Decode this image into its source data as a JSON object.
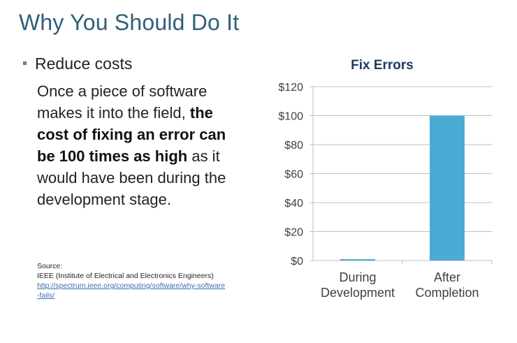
{
  "slide": {
    "title": "Why You Should Do It",
    "bullet": "Reduce costs",
    "body_pre": "Once a piece of software makes it into the field,",
    "body_bold": "the cost of fixing an error can be 100 times as high",
    "body_post": "as it would have been during the development stage.",
    "source_label": "Source:",
    "source_org": "IEEE (Institute of Electrical and Electronics Engineers)",
    "source_link": "http://spectrum.ieee.org/computing/software/why-software-fails/"
  },
  "chart_data": {
    "type": "bar",
    "title": "Fix Errors",
    "categories": [
      [
        "During",
        "Development"
      ],
      [
        "After",
        "Completion"
      ]
    ],
    "values": [
      1,
      100
    ],
    "ylim": [
      0,
      120
    ],
    "yticks": [
      0,
      20,
      40,
      60,
      80,
      100,
      120
    ],
    "tick_prefix": "$",
    "xlabel": "",
    "ylabel": "",
    "grid": true,
    "bar_color": "#4aabd6",
    "title_color": "#1f3864"
  }
}
